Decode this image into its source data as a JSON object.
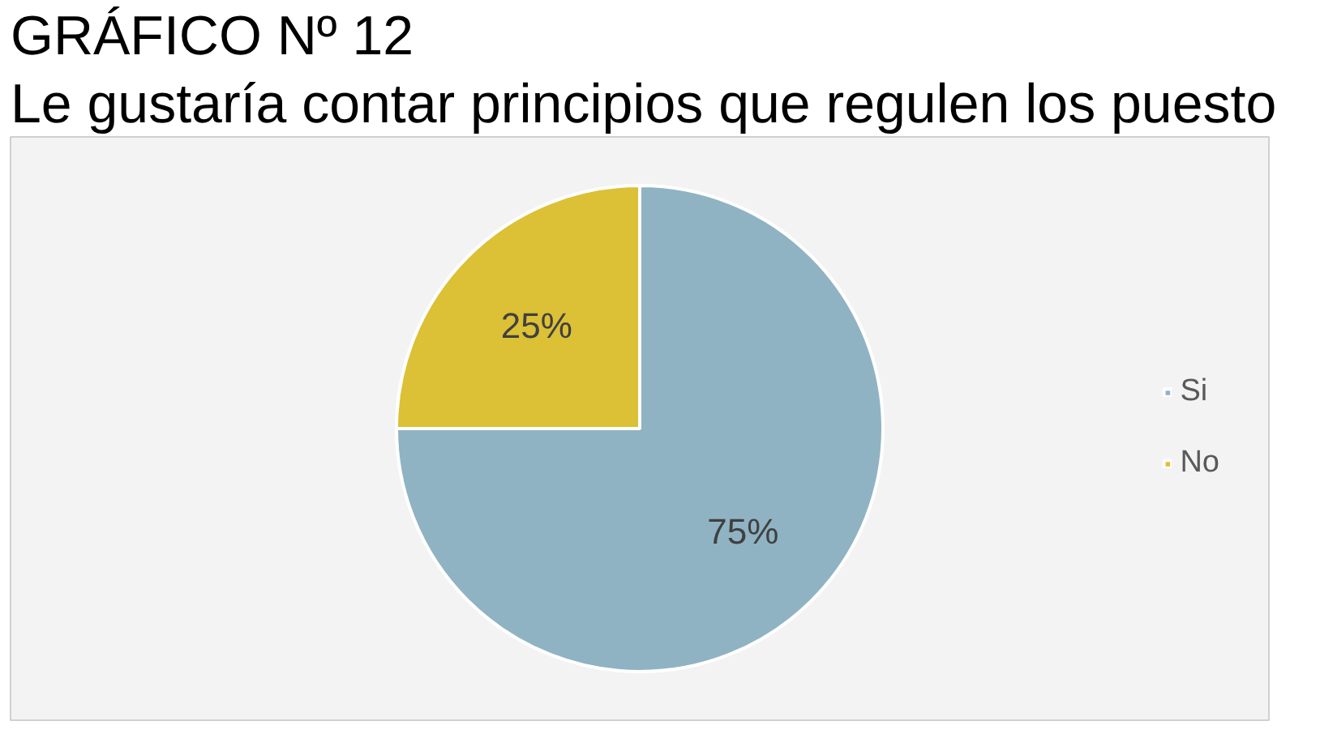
{
  "chart_data": {
    "type": "pie",
    "title": "GRÁFICO Nº 12",
    "subtitle": "Le gustaría contar principios que regulen los puesto",
    "categories": [
      "Si",
      "No"
    ],
    "values": [
      75,
      25
    ],
    "colors": [
      "#8fb3c3",
      "#dcc035"
    ],
    "value_labels": [
      "75%",
      "25%"
    ],
    "legend": "right"
  }
}
